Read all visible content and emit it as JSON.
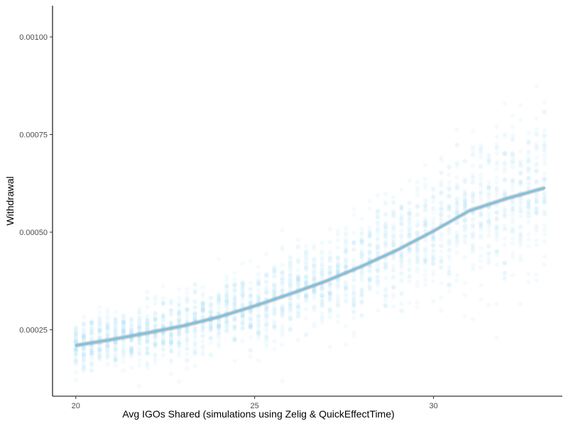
{
  "chart_data": {
    "type": "scatter",
    "xlabel": "Avg IGOs Shared (simulations using Zelig & QuickEffectTime)",
    "ylabel": "Withdrawal",
    "xlim": [
      19.35,
      33.6
    ],
    "ylim": [
      8e-05,
      0.00108
    ],
    "x_ticks": [
      20,
      25,
      30
    ],
    "x_tick_labels": [
      "20",
      "25",
      "30"
    ],
    "y_ticks": [
      0.00025,
      0.0005,
      0.00075,
      0.001
    ],
    "y_tick_labels": [
      "0.00025",
      "0.00050",
      "0.00075",
      "0.00100"
    ],
    "grid": false,
    "legend": "none",
    "colors": {
      "points": "#a8dcf3",
      "smooth": "#7ec0e0",
      "ribbon": "#999999",
      "axis": "#000000"
    },
    "series": [
      {
        "type": "scatter",
        "x_range": [
          20,
          33.1
        ],
        "point_columns": 60,
        "points_per_column": 40,
        "spread_sd_relative": 0.16,
        "opacity": 0.12
      },
      {
        "type": "smooth-line",
        "x": [
          20,
          21,
          22,
          23,
          24,
          25,
          26,
          27,
          28,
          29,
          30,
          31,
          32,
          33.1
        ],
        "y": [
          0.00021,
          0.000225,
          0.000242,
          0.00026,
          0.000283,
          0.000311,
          0.000342,
          0.000375,
          0.000413,
          0.000455,
          0.000503,
          0.000555,
          0.000585,
          0.000613
        ],
        "ribbon_half_width": 6e-06
      }
    ]
  }
}
